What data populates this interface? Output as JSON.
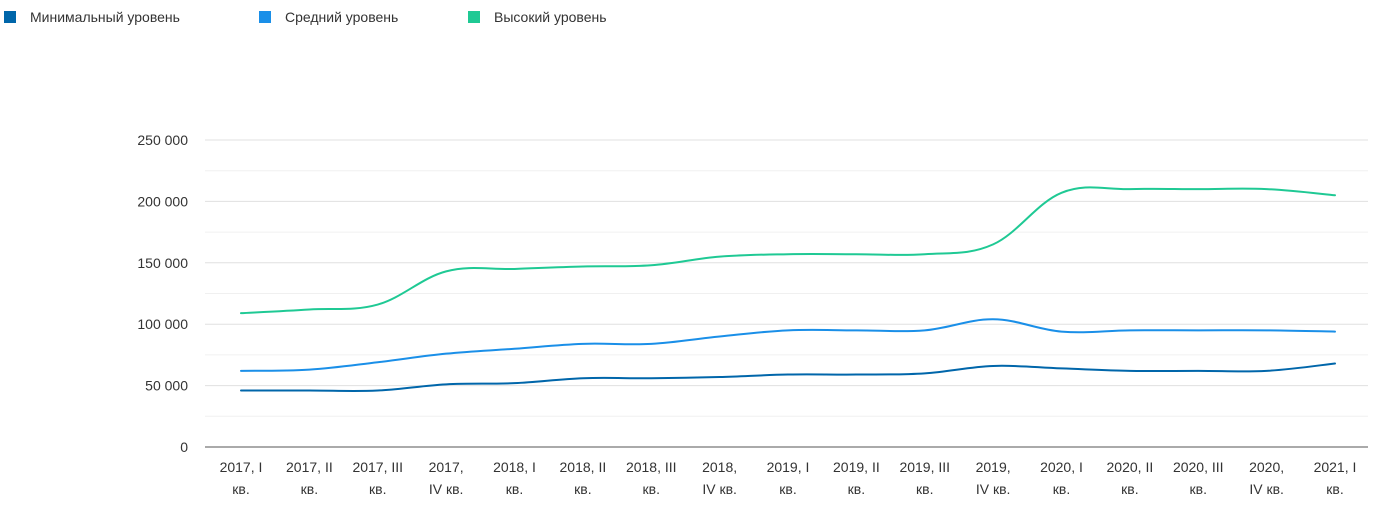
{
  "chart_data": {
    "type": "line",
    "categories": [
      [
        "2017, I",
        "кв."
      ],
      [
        "2017, II",
        "кв."
      ],
      [
        "2017, III",
        "кв."
      ],
      [
        "2017,",
        "IV кв."
      ],
      [
        "2018, I",
        "кв."
      ],
      [
        "2018, II",
        "кв."
      ],
      [
        "2018, III",
        "кв."
      ],
      [
        "2018,",
        "IV кв."
      ],
      [
        "2019, I",
        "кв."
      ],
      [
        "2019, II",
        "кв."
      ],
      [
        "2019, III",
        "кв."
      ],
      [
        "2019,",
        "IV кв."
      ],
      [
        "2020, I",
        "кв."
      ],
      [
        "2020, II",
        "кв."
      ],
      [
        "2020, III",
        "кв."
      ],
      [
        "2020,",
        "IV кв."
      ],
      [
        "2021, I",
        "кв."
      ]
    ],
    "series": [
      {
        "name": "Минимальный уровень",
        "color": "#0066aa",
        "values": [
          46000,
          46000,
          46000,
          51000,
          52000,
          56000,
          56000,
          57000,
          59000,
          59000,
          60000,
          66000,
          64000,
          62000,
          62000,
          62000,
          68000
        ]
      },
      {
        "name": "Средний уровень",
        "color": "#1a8fe8",
        "values": [
          62000,
          63000,
          69000,
          76000,
          80000,
          84000,
          84000,
          90000,
          95000,
          95000,
          95000,
          104000,
          94000,
          95000,
          95000,
          95000,
          94000
        ]
      },
      {
        "name": "Высокий уровень",
        "color": "#1fc994",
        "values": [
          109000,
          112000,
          116000,
          143000,
          145000,
          147000,
          148000,
          155000,
          157000,
          157000,
          157000,
          165000,
          207000,
          210000,
          210000,
          210000,
          205000
        ]
      }
    ],
    "y_ticks": [
      {
        "value": 0,
        "label": "0"
      },
      {
        "value": 50000,
        "label": "50 000"
      },
      {
        "value": 100000,
        "label": "100 000"
      },
      {
        "value": 150000,
        "label": "150 000"
      },
      {
        "value": 200000,
        "label": "200 000"
      },
      {
        "value": 250000,
        "label": "250 000"
      }
    ],
    "ylim": [
      0,
      250000
    ],
    "grid": true,
    "minor_grid": true,
    "legend_position": "top-left",
    "axis_color": "#555555",
    "grid_color": "#e0e0e0"
  }
}
